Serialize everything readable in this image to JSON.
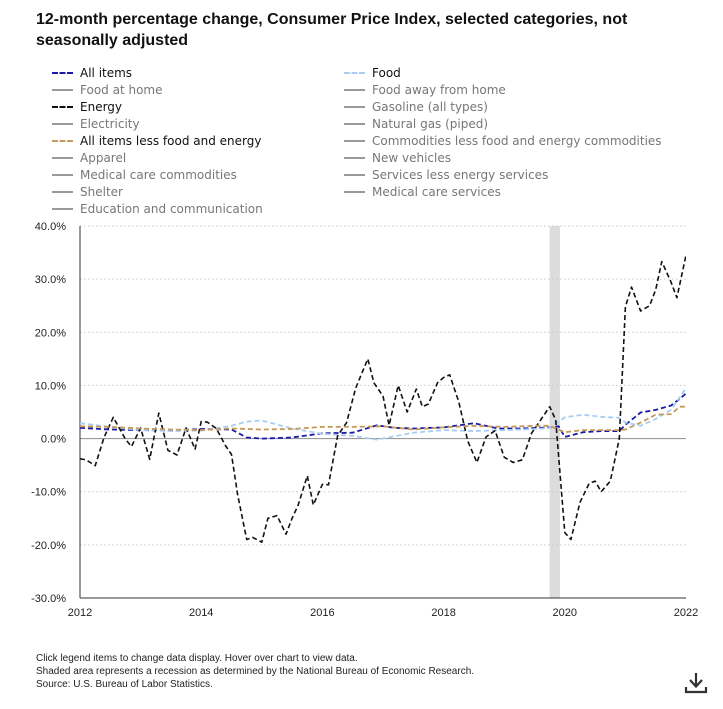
{
  "title": "12-month percentage change, Consumer Price Index, selected categories, not seasonally adjusted",
  "legend": [
    {
      "label": "All items",
      "color": "#1a1aa6",
      "style": "dashed",
      "active": true
    },
    {
      "label": "Food",
      "color": "#a9cdf2",
      "style": "dashed",
      "active": true
    },
    {
      "label": "Food at home",
      "color": "#9a9a9a",
      "style": "solid",
      "active": false
    },
    {
      "label": "Food away from home",
      "color": "#9a9a9a",
      "style": "solid",
      "active": false
    },
    {
      "label": "Energy",
      "color": "#111111",
      "style": "dashed",
      "active": true
    },
    {
      "label": "Gasoline (all types)",
      "color": "#9a9a9a",
      "style": "solid",
      "active": false
    },
    {
      "label": "Electricity",
      "color": "#9a9a9a",
      "style": "solid",
      "active": false
    },
    {
      "label": "Natural gas (piped)",
      "color": "#9a9a9a",
      "style": "solid",
      "active": false
    },
    {
      "label": "All items less food and energy",
      "color": "#c49a5c",
      "style": "dashed",
      "active": true
    },
    {
      "label": "Commodities less food and energy commodities",
      "color": "#9a9a9a",
      "style": "solid",
      "active": false
    },
    {
      "label": "Apparel",
      "color": "#9a9a9a",
      "style": "solid",
      "active": false
    },
    {
      "label": "New vehicles",
      "color": "#9a9a9a",
      "style": "solid",
      "active": false
    },
    {
      "label": "Medical care commodities",
      "color": "#9a9a9a",
      "style": "solid",
      "active": false
    },
    {
      "label": "Services less energy services",
      "color": "#9a9a9a",
      "style": "solid",
      "active": false
    },
    {
      "label": "Shelter",
      "color": "#9a9a9a",
      "style": "solid",
      "active": false
    },
    {
      "label": "Medical care services",
      "color": "#9a9a9a",
      "style": "solid",
      "active": false
    },
    {
      "label": "Education and communication",
      "color": "#9a9a9a",
      "style": "solid",
      "active": false
    }
  ],
  "footnotes": [
    "Click legend items to change data display. Hover over chart to view data.",
    "Shaded area represents a recession as determined by the National Bureau of Economic Research.",
    "Source: U.S. Bureau of Labor Statistics."
  ],
  "download_icon": "download-icon",
  "chart_data": {
    "type": "line",
    "title": "12-month percentage change, Consumer Price Index, selected categories, not seasonally adjusted",
    "xlabel": "",
    "ylabel": "",
    "xlim": [
      2012.0,
      2022.0
    ],
    "ylim": [
      -30,
      40
    ],
    "y_ticks": [
      40,
      30,
      20,
      10,
      0,
      -10,
      -20,
      -30
    ],
    "y_tick_labels": [
      "40.0%",
      "30.0%",
      "20.0%",
      "10.0%",
      "0.0%",
      "-10.0%",
      "-20.0%",
      "-30.0%"
    ],
    "x_ticks": [
      2012,
      2014,
      2016,
      2018,
      2020,
      2022
    ],
    "x_tick_labels": [
      "2012",
      "2014",
      "2016",
      "2018",
      "2020",
      "2022"
    ],
    "grid": "horizontal dotted",
    "recession": {
      "start": 2019.75,
      "end": 2019.92
    },
    "series": [
      {
        "name": "All items",
        "color": "#1a1aa6",
        "x": [
          2012.0,
          2012.5,
          2013.0,
          2013.5,
          2014.0,
          2014.5,
          2014.75,
          2015.0,
          2015.5,
          2016.0,
          2016.5,
          2016.9,
          2017.2,
          2017.5,
          2018.0,
          2018.5,
          2018.9,
          2019.3,
          2019.75,
          2019.9,
          2020.0,
          2020.3,
          2020.6,
          2020.9,
          2021.0,
          2021.25,
          2021.5,
          2021.75,
          2021.9,
          2022.0
        ],
        "values": [
          2.0,
          1.7,
          1.6,
          1.5,
          1.8,
          1.7,
          0.2,
          0.0,
          0.2,
          1.0,
          1.1,
          2.5,
          2.0,
          1.9,
          2.1,
          2.9,
          1.9,
          1.9,
          2.1,
          2.3,
          0.3,
          1.2,
          1.4,
          1.4,
          2.6,
          4.9,
          5.4,
          6.2,
          7.5,
          8.5
        ]
      },
      {
        "name": "Food",
        "color": "#a9cdf2",
        "x": [
          2012.0,
          2012.5,
          2013.0,
          2013.5,
          2014.0,
          2014.5,
          2014.75,
          2015.0,
          2015.5,
          2016.0,
          2016.5,
          2016.9,
          2017.5,
          2018.0,
          2018.5,
          2019.0,
          2019.5,
          2019.75,
          2020.0,
          2020.3,
          2020.6,
          2020.9,
          2021.0,
          2021.25,
          2021.5,
          2021.75,
          2022.0
        ],
        "values": [
          2.9,
          2.2,
          1.6,
          1.4,
          1.5,
          2.4,
          3.2,
          3.4,
          1.9,
          0.9,
          0.5,
          -0.2,
          1.1,
          1.6,
          1.4,
          1.6,
          1.8,
          2.0,
          4.0,
          4.5,
          4.1,
          3.9,
          3.0,
          2.4,
          3.7,
          5.4,
          9.5
        ]
      },
      {
        "name": "Energy",
        "color": "#111111",
        "x": [
          2012.0,
          2012.1,
          2012.25,
          2012.4,
          2012.55,
          2012.75,
          2012.85,
          2013.0,
          2013.15,
          2013.3,
          2013.45,
          2013.6,
          2013.75,
          2013.9,
          2014.0,
          2014.1,
          2014.25,
          2014.4,
          2014.5,
          2014.6,
          2014.75,
          2014.85,
          2015.0,
          2015.1,
          2015.25,
          2015.4,
          2015.5,
          2015.6,
          2015.75,
          2015.85,
          2016.0,
          2016.1,
          2016.25,
          2016.4,
          2016.55,
          2016.75,
          2016.85,
          2017.0,
          2017.1,
          2017.25,
          2017.4,
          2017.55,
          2017.65,
          2017.75,
          2017.9,
          2018.0,
          2018.1,
          2018.25,
          2018.4,
          2018.55,
          2018.7,
          2018.85,
          2019.0,
          2019.15,
          2019.3,
          2019.45,
          2019.6,
          2019.75,
          2019.85,
          2020.0,
          2020.1,
          2020.25,
          2020.4,
          2020.5,
          2020.6,
          2020.75,
          2020.9,
          2021.0,
          2021.1,
          2021.25,
          2021.4,
          2021.5,
          2021.6,
          2021.75,
          2021.85,
          2022.0
        ],
        "values": [
          -3.8,
          -4.0,
          -5.1,
          0.3,
          4.0,
          -0.1,
          -1.5,
          2.0,
          -3.9,
          4.8,
          -2.2,
          -3.1,
          2.0,
          -2.0,
          3.2,
          3.1,
          1.9,
          -1.3,
          -3.0,
          -10.5,
          -19.0,
          -18.6,
          -19.5,
          -15.0,
          -14.5,
          -18.0,
          -15.0,
          -12.5,
          -7.0,
          -12.5,
          -8.6,
          -8.7,
          0.5,
          3.0,
          9.5,
          15.0,
          10.5,
          8.0,
          2.5,
          10.0,
          5.0,
          9.3,
          6.0,
          6.5,
          10.5,
          11.5,
          12.0,
          6.9,
          -0.5,
          -4.5,
          0.3,
          1.5,
          -3.5,
          -4.5,
          -4.0,
          1.0,
          3.5,
          6.0,
          3.5,
          -17.7,
          -19.0,
          -12.0,
          -8.5,
          -8.0,
          -10.0,
          -8.0,
          0.0,
          24.8,
          28.5,
          24.0,
          25.0,
          28.0,
          33.3,
          29.5,
          26.5,
          34.5
        ]
      },
      {
        "name": "All items less food and energy",
        "color": "#c49a5c",
        "x": [
          2012.0,
          2012.5,
          2013.0,
          2013.5,
          2014.0,
          2014.5,
          2015.0,
          2015.5,
          2016.0,
          2016.5,
          2017.0,
          2017.5,
          2018.0,
          2018.5,
          2019.0,
          2019.5,
          2019.75,
          2020.0,
          2020.3,
          2020.6,
          2020.9,
          2021.0,
          2021.25,
          2021.5,
          2021.75,
          2021.9,
          2022.0
        ],
        "values": [
          2.3,
          2.2,
          1.9,
          1.7,
          1.6,
          1.9,
          1.7,
          1.8,
          2.2,
          2.2,
          2.3,
          1.7,
          2.1,
          2.4,
          2.2,
          2.4,
          2.4,
          1.2,
          1.6,
          1.6,
          1.6,
          1.7,
          3.0,
          4.5,
          4.6,
          6.0,
          6.0
        ]
      }
    ]
  }
}
